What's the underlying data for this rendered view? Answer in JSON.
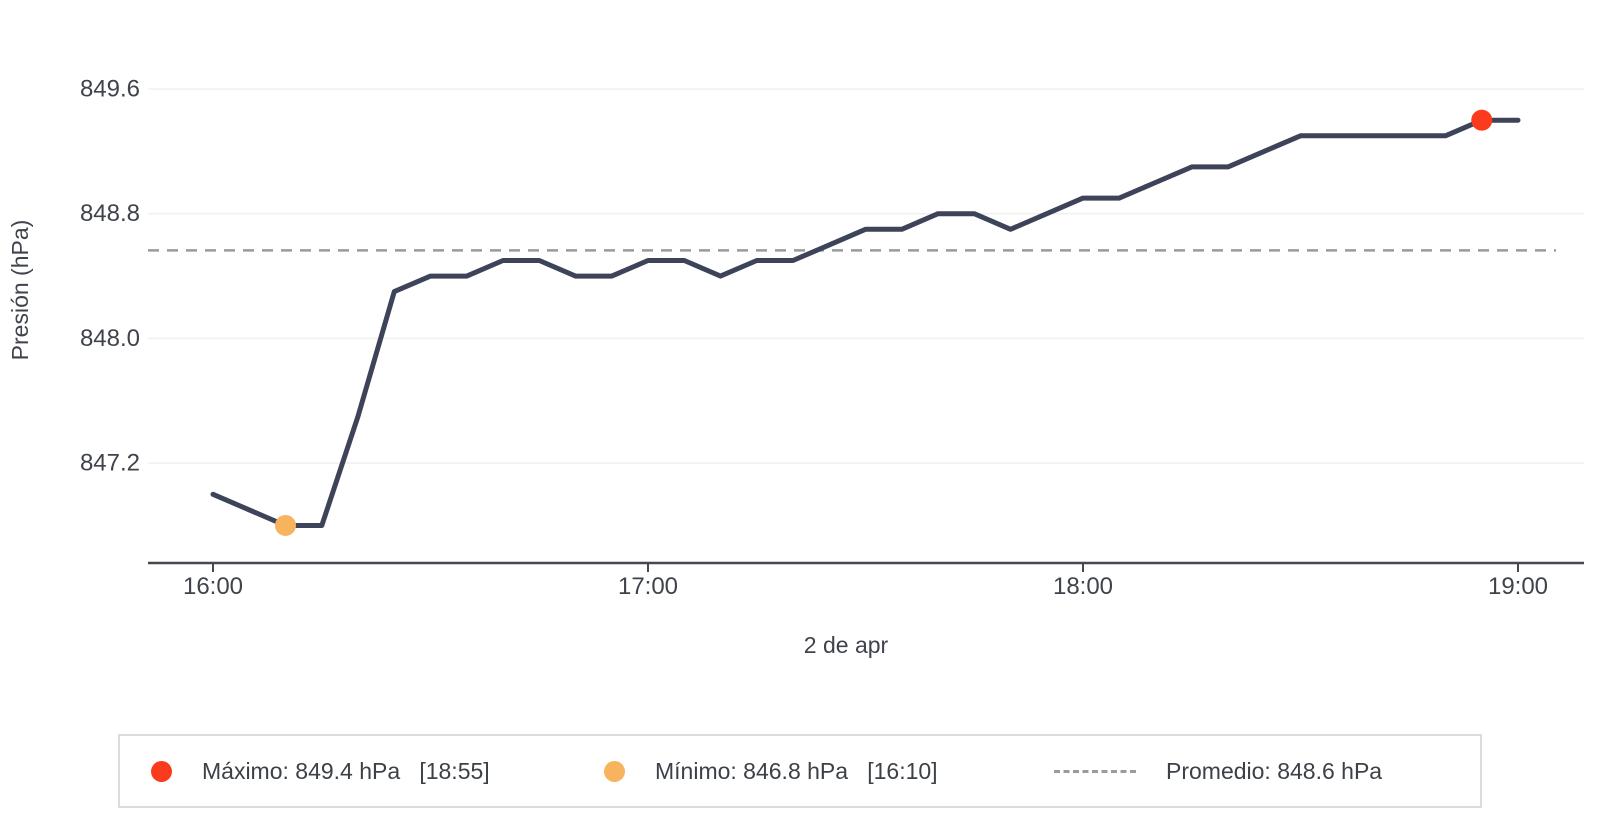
{
  "chart_data": {
    "type": "line",
    "title": "",
    "xlabel": "2 de apr",
    "ylabel": "Presión (hPa)",
    "x_tick_labels": [
      "16:00",
      "17:00",
      "18:00",
      "19:00"
    ],
    "y_tick_values": [
      847.2,
      848.0,
      848.8,
      849.6
    ],
    "y_tick_labels": [
      "847.2",
      "848.0",
      "848.8",
      "849.6"
    ],
    "ylim": [
      846.55,
      850.05
    ],
    "grid": "horizontal",
    "legend_position": "bottom",
    "series": [
      {
        "name": "Presión",
        "color": "#3d4459",
        "x": [
          "16:00",
          "16:05",
          "16:10",
          "16:15",
          "16:20",
          "16:25",
          "16:30",
          "16:35",
          "16:40",
          "16:45",
          "16:50",
          "16:55",
          "17:00",
          "17:05",
          "17:10",
          "17:15",
          "17:20",
          "17:25",
          "17:30",
          "17:35",
          "17:40",
          "17:45",
          "17:50",
          "17:55",
          "18:00",
          "18:05",
          "18:10",
          "18:15",
          "18:20",
          "18:25",
          "18:30",
          "18:35",
          "18:40",
          "18:45",
          "18:50",
          "18:55",
          "19:00"
        ],
        "values": [
          847.0,
          846.9,
          846.8,
          846.8,
          847.5,
          848.3,
          848.4,
          848.4,
          848.5,
          848.5,
          848.4,
          848.4,
          848.5,
          848.5,
          848.4,
          848.5,
          848.5,
          848.6,
          848.7,
          848.7,
          848.8,
          848.8,
          848.7,
          848.8,
          848.9,
          848.9,
          849.0,
          849.1,
          849.1,
          849.2,
          849.3,
          849.3,
          849.3,
          849.3,
          849.3,
          849.4,
          849.4
        ]
      }
    ],
    "annotations": {
      "max": {
        "time": "18:55",
        "value": 849.4,
        "marker_color": "#fa3b1d"
      },
      "min": {
        "time": "16:10",
        "value": 846.8,
        "marker_color": "#f8b35e"
      },
      "avg": {
        "value": 848.6,
        "line_color": "#9b9b9b",
        "line_style": "dashed"
      }
    }
  },
  "legend": {
    "items": [
      {
        "id": "max",
        "marker": "dot",
        "color": "#fa3b1d",
        "label": "Máximo: 849.4 hPa   [18:55]"
      },
      {
        "id": "min",
        "marker": "dot",
        "color": "#f8b35e",
        "label": "Mínimo: 846.8 hPa   [16:10]"
      },
      {
        "id": "avg",
        "marker": "dash",
        "color": "#9b9b9b",
        "label": "Promedio: 848.6 hPa"
      }
    ]
  },
  "colors": {
    "line": "#3d4459",
    "max_marker": "#fa3b1d",
    "min_marker": "#f8b35e",
    "avg_line": "#9b9b9b",
    "axis": "#45484f",
    "tick_text": "#3f434b",
    "gridline": "#f0f0f1",
    "legend_border": "#dcdcdc"
  }
}
